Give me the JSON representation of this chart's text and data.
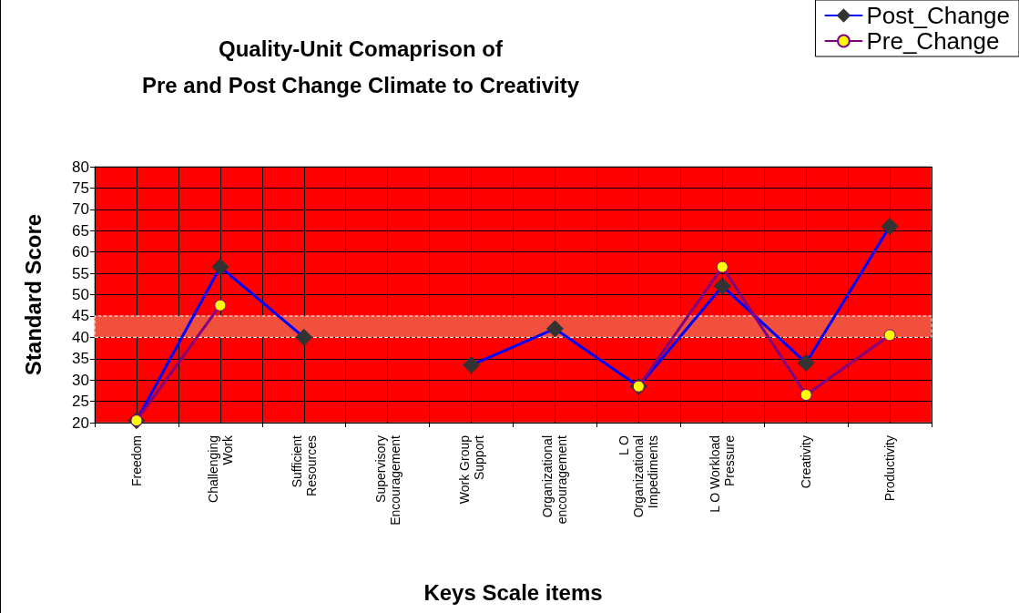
{
  "chart_data": {
    "type": "line",
    "title": "Quality-Unit Comaprison of\nPre and Post Change Climate to Creativity",
    "xlabel": "Keys Scale items",
    "ylabel": "Standard Score",
    "categories": [
      "Freedom",
      "Challenging\nWork",
      "Sufficient\nResources",
      "Supervisory\nEncouragement",
      "Work Group\nSupport",
      "Organizational\nencouragement",
      "L O\nOrganizational\nImpediments",
      "L O Workload\nPressure",
      "Creativity",
      "Productivity"
    ],
    "series": [
      {
        "name": "Post_Change",
        "color": "#0000ff",
        "marker": "diamond",
        "values": [
          20.5,
          56.5,
          40,
          null,
          33.5,
          42,
          28.5,
          52,
          34,
          66
        ]
      },
      {
        "name": "Pre_Change",
        "color": "#800080",
        "marker": "circle",
        "values": [
          20.5,
          47.5,
          null,
          null,
          null,
          null,
          28.5,
          56.5,
          26.5,
          40.5
        ]
      }
    ],
    "ylim": [
      20,
      80
    ],
    "yticks": [
      20,
      25,
      30,
      35,
      40,
      45,
      50,
      55,
      60,
      65,
      70,
      75,
      80
    ],
    "bands": [
      {
        "axis": "y",
        "from": 40,
        "to": 45,
        "color": "#f0503c"
      }
    ],
    "grid": true,
    "legend": "top right",
    "line_style": "solid"
  }
}
